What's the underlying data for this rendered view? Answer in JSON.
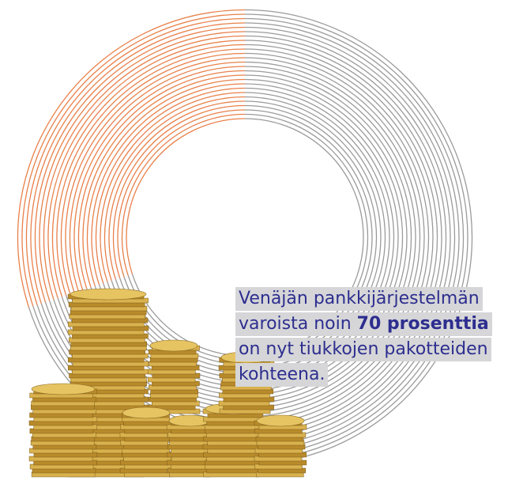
{
  "chart_data": {
    "type": "pie",
    "values": [
      70,
      30
    ],
    "colors": [
      "#9a9a9a",
      "#e8804a"
    ],
    "annotation": [
      "Venäjän pankkijärjestelmän",
      "varoista noin",
      "70 prosenttia",
      "on nyt tiukkojen pakotteiden",
      "kohteena."
    ]
  }
}
